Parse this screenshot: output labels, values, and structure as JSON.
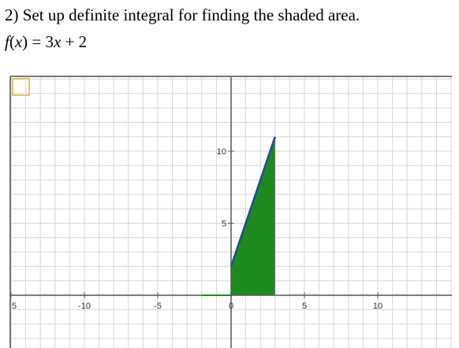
{
  "problem": {
    "number": "2)",
    "text": "Set up definite integral for finding the shaded area."
  },
  "function": {
    "name": "f",
    "lparen": "(",
    "var": "x",
    "rparen": ")",
    "eq": " = 3",
    "x": "x",
    "rest": " + 2"
  },
  "chart_data": {
    "type": "area",
    "function": "3x + 2",
    "x_range": [
      -15,
      15
    ],
    "y_range": [
      -3,
      13
    ],
    "shaded_interval": [
      0,
      3
    ],
    "x": [
      0,
      3
    ],
    "y": [
      2,
      11
    ],
    "x_tick_labels": [
      "5",
      "-10",
      "-5",
      "0",
      "5",
      "10"
    ],
    "y_tick_labels": [
      "10",
      "5"
    ],
    "grid": true,
    "colors": {
      "fill": "#1e8a1e",
      "line": "#2b3fae",
      "grid": "#d6d6d6",
      "axis": "#555555"
    }
  }
}
